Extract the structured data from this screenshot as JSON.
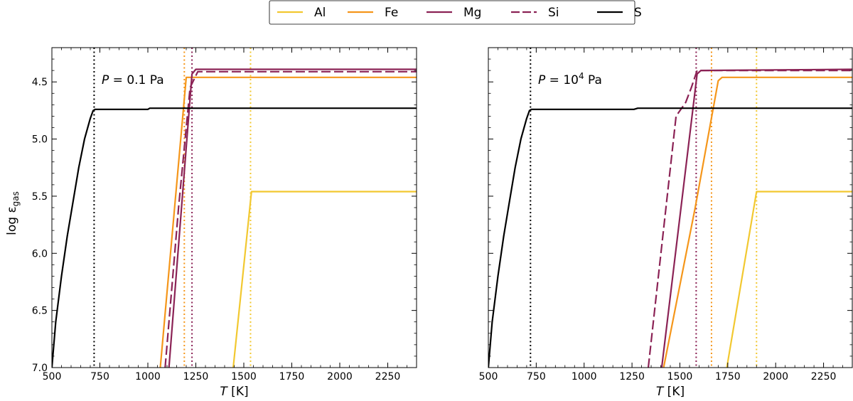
{
  "legend": {
    "placement": "top-center",
    "entries": [
      {
        "label": "Al",
        "color": "#f2c830",
        "dash": false
      },
      {
        "label": "Fe",
        "color": "#f5961a",
        "dash": false
      },
      {
        "label": "Mg",
        "color": "#8b2255",
        "dash": false
      },
      {
        "label": "Si",
        "color": "#8b2255",
        "dash": true
      },
      {
        "label": "S",
        "color": "#000000",
        "dash": false
      }
    ]
  },
  "ylabel_main": "log ε",
  "ylabel_sub": "gas",
  "chart_data": [
    {
      "type": "line",
      "annotation": {
        "var": "P",
        "text": " = 0.1 Pa"
      },
      "xlabel_var": "T",
      "xlabel_unit": " [K]",
      "xlim": [
        500,
        2400
      ],
      "ylim": [
        4.2,
        7.0
      ],
      "y_inverted": true,
      "xticks": [
        500,
        750,
        1000,
        1250,
        1500,
        1750,
        2000,
        2250
      ],
      "yticks": [
        4.5,
        5.0,
        5.5,
        6.0,
        6.5,
        7.0
      ],
      "ytick_labels": [
        "4.5",
        "5.0",
        "5.5",
        "6.0",
        "6.5",
        "7.0"
      ],
      "vlines": [
        {
          "x": 720,
          "color": "#000000"
        },
        {
          "x": 1190,
          "color": "#f5961a"
        },
        {
          "x": 1230,
          "color": "#8b2255"
        },
        {
          "x": 1535,
          "color": "#f2c830"
        }
      ],
      "series": [
        {
          "name": "Al",
          "color": "#f2c830",
          "dash": false,
          "x": [
            1445,
            1540,
            2400
          ],
          "y": [
            7.0,
            5.46,
            5.46
          ]
        },
        {
          "name": "Fe",
          "color": "#f5961a",
          "dash": false,
          "x": [
            1065,
            1200,
            2400
          ],
          "y": [
            7.0,
            4.46,
            4.46
          ]
        },
        {
          "name": "Mg",
          "color": "#8b2255",
          "dash": false,
          "x": [
            1110,
            1230,
            1250,
            2400
          ],
          "y": [
            7.0,
            4.43,
            4.39,
            4.39
          ]
        },
        {
          "name": "Si",
          "color": "#8b2255",
          "dash": true,
          "x": [
            1090,
            1160,
            1220,
            1260,
            2400
          ],
          "y": [
            7.0,
            5.6,
            4.55,
            4.41,
            4.41
          ]
        },
        {
          "name": "S",
          "color": "#000000",
          "dash": false,
          "x": [
            500,
            520,
            550,
            580,
            610,
            640,
            670,
            700,
            715,
            725,
            950,
            1000,
            1010,
            2400
          ],
          "y": [
            7.0,
            6.6,
            6.2,
            5.85,
            5.55,
            5.25,
            5.0,
            4.82,
            4.75,
            4.74,
            4.74,
            4.74,
            4.73,
            4.73
          ]
        }
      ]
    },
    {
      "type": "line",
      "annotation": {
        "var": "P",
        "text": " = 10",
        "sup": "4",
        "after": " Pa"
      },
      "xlabel_var": "T",
      "xlabel_unit": " [K]",
      "xlim": [
        500,
        2400
      ],
      "ylim": [
        4.2,
        7.0
      ],
      "y_inverted": true,
      "xticks": [
        500,
        750,
        1000,
        1250,
        1500,
        1750,
        2000,
        2250
      ],
      "yticks": [
        4.5,
        5.0,
        5.5,
        6.0,
        6.5,
        7.0
      ],
      "ytick_labels": [],
      "vlines": [
        {
          "x": 720,
          "color": "#000000"
        },
        {
          "x": 1585,
          "color": "#8b2255"
        },
        {
          "x": 1665,
          "color": "#f5961a"
        },
        {
          "x": 1900,
          "color": "#f2c830"
        }
      ],
      "series": [
        {
          "name": "Al",
          "color": "#f2c830",
          "dash": false,
          "x": [
            1745,
            1900,
            2400
          ],
          "y": [
            7.0,
            5.46,
            5.46
          ]
        },
        {
          "name": "Fe",
          "color": "#f5961a",
          "dash": false,
          "x": [
            1415,
            1580,
            1700,
            1720,
            2400
          ],
          "y": [
            7.0,
            5.6,
            4.49,
            4.46,
            4.46
          ]
        },
        {
          "name": "Mg",
          "color": "#8b2255",
          "dash": false,
          "x": [
            1405,
            1590,
            1610,
            2400
          ],
          "y": [
            7.0,
            4.43,
            4.4,
            4.39
          ]
        },
        {
          "name": "Si",
          "color": "#8b2255",
          "dash": true,
          "x": [
            1335,
            1480,
            1530,
            1560,
            1590,
            2400
          ],
          "y": [
            7.0,
            4.8,
            4.68,
            4.55,
            4.4,
            4.4
          ]
        },
        {
          "name": "S",
          "color": "#000000",
          "dash": false,
          "x": [
            500,
            520,
            550,
            580,
            610,
            640,
            670,
            700,
            715,
            725,
            1210,
            1260,
            1280,
            2400
          ],
          "y": [
            7.0,
            6.6,
            6.2,
            5.85,
            5.55,
            5.25,
            5.0,
            4.82,
            4.75,
            4.74,
            4.74,
            4.74,
            4.73,
            4.73
          ]
        }
      ]
    }
  ]
}
